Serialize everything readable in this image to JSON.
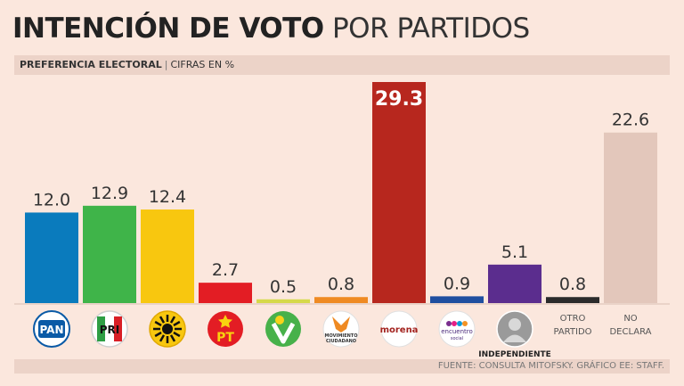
{
  "header": {
    "title_bold": "INTENCIÓN DE VOTO",
    "title_light": "POR PARTIDOS",
    "subtitle_bold": "PREFERENCIA ELECTORAL",
    "subtitle_sep": "|",
    "subtitle_light": "CIFRAS EN %"
  },
  "footer": {
    "source": "FUENTE: CONSULTA MITOFSKY. GRÁFICO EE: STAFF."
  },
  "chart_data": {
    "type": "bar",
    "title": "INTENCIÓN DE VOTO POR PARTIDOS",
    "ylabel": "CIFRAS EN %",
    "ylim": [
      0,
      29.3
    ],
    "grid": false,
    "categories": [
      "PAN",
      "PRI",
      "PRD",
      "PT",
      "PVEM",
      "MOVIMIENTO CIUDADANO",
      "morena",
      "encuentro social",
      "INDEPENDIENTE",
      "OTRO PARTIDO",
      "NO DECLARA"
    ],
    "values": [
      12.0,
      12.9,
      12.4,
      2.7,
      0.5,
      0.8,
      29.3,
      0.9,
      5.1,
      0.8,
      22.6
    ],
    "value_labels": [
      "12.0",
      "12.9",
      "12.4",
      "2.7",
      "0.5",
      "0.8",
      "29.3",
      "0.9",
      "5.1",
      "0.8",
      "22.6"
    ],
    "colors": [
      "#0a7bbd",
      "#3fb449",
      "#f8c70f",
      "#e31d24",
      "#d6d94a",
      "#ef8a22",
      "#b7271e",
      "#1f4fa0",
      "#5b2d8e",
      "#2b2b2b",
      "#e3c7bb"
    ],
    "logos": [
      {
        "icon": "pan-logo",
        "text": "PAN"
      },
      {
        "icon": "pri-logo",
        "text": "PRI"
      },
      {
        "icon": "prd-logo",
        "text": ""
      },
      {
        "icon": "pt-logo",
        "text": "PT"
      },
      {
        "icon": "pvem-logo",
        "text": ""
      },
      {
        "icon": "movimiento-ciudadano-logo",
        "text": "MOVIMIENTO CIUDADANO"
      },
      {
        "icon": "morena-logo",
        "text": "morena"
      },
      {
        "icon": "encuentro-social-logo",
        "text": "encuentro social"
      },
      {
        "icon": "independiente-silhouette",
        "text": "INDEPENDIENTE"
      },
      {
        "icon": "",
        "text": "OTRO PARTIDO"
      },
      {
        "icon": "",
        "text": "NO DECLARA"
      }
    ],
    "text_category_lines": {
      "OTRO PARTIDO": [
        "OTRO",
        "PARTIDO"
      ],
      "NO DECLARA": [
        "NO",
        "DECLARA"
      ]
    }
  }
}
